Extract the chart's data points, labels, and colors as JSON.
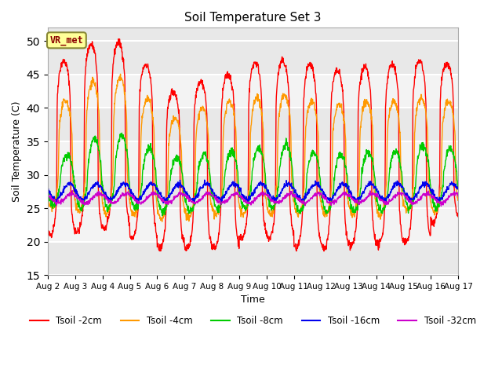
{
  "title": "Soil Temperature Set 3",
  "xlabel": "Time",
  "ylabel": "Soil Temperature (C)",
  "ylim": [
    15,
    52
  ],
  "yticks": [
    15,
    20,
    25,
    30,
    35,
    40,
    45,
    50
  ],
  "date_labels": [
    "Aug 2",
    "Aug 3",
    "Aug 4",
    "Aug 5",
    "Aug 6",
    "Aug 7",
    "Aug 8",
    "Aug 9",
    "Aug 10",
    "Aug 11",
    "Aug 12",
    "Aug 13",
    "Aug 14",
    "Aug 15",
    "Aug 16",
    "Aug 17"
  ],
  "annotation_text": "VR_met",
  "annotation_color": "#8b0000",
  "annotation_bg": "#ffff99",
  "series_colors": {
    "Tsoil -2cm": "#ff0000",
    "Tsoil -4cm": "#ff9900",
    "Tsoil -8cm": "#00cc00",
    "Tsoil -16cm": "#0000ee",
    "Tsoil -32cm": "#cc00cc"
  },
  "fig_bg_color": "#ffffff",
  "plot_bg_color": "#e8e8e8",
  "num_days": 15,
  "dt_hours": 0.25,
  "seed": 42
}
